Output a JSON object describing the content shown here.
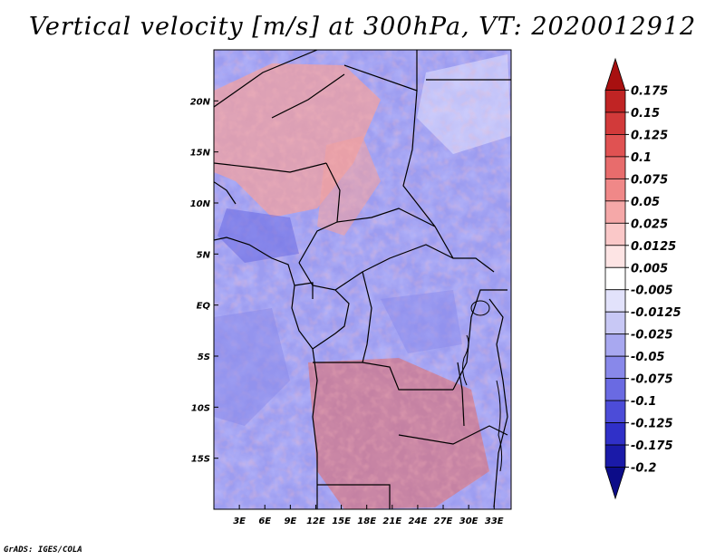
{
  "title": "Vertical velocity [m/s] at 300hPa, VT: 2020012912",
  "credit": "GrADS: IGES/COLA",
  "chart_data": {
    "type": "heatmap",
    "variable": "Vertical velocity",
    "units": "m/s",
    "level": "300hPa",
    "valid_time": "2020012912",
    "lon_range": [
      0,
      35
    ],
    "lat_range": [
      -20,
      25
    ],
    "x_ticks": [
      "3E",
      "6E",
      "9E",
      "12E",
      "15E",
      "18E",
      "21E",
      "24E",
      "27E",
      "30E",
      "33E"
    ],
    "x_tick_values": [
      3,
      6,
      9,
      12,
      15,
      18,
      21,
      24,
      27,
      30,
      33
    ],
    "y_ticks": [
      "20N",
      "15N",
      "10N",
      "5N",
      "EQ",
      "5S",
      "10S",
      "15S"
    ],
    "y_tick_values": [
      20,
      15,
      10,
      5,
      0,
      -5,
      -10,
      -15
    ],
    "colorbar": {
      "labels": [
        "0.175",
        "0.15",
        "0.125",
        "0.1",
        "0.075",
        "0.05",
        "0.025",
        "0.0125",
        "0.005",
        "-0.005",
        "-0.0125",
        "-0.025",
        "-0.05",
        "-0.075",
        "-0.1",
        "-0.125",
        "-0.175",
        "-0.2"
      ],
      "colors": [
        "#a81010",
        "#c02424",
        "#d23a3a",
        "#e05252",
        "#e86c6c",
        "#f08888",
        "#f5a8a8",
        "#fac8c8",
        "#fde4e4",
        "#ffffff",
        "#e2e2fb",
        "#c8c8f5",
        "#a8a8f0",
        "#8888ea",
        "#6a6ae2",
        "#4c4cd8",
        "#3030c8",
        "#1a1aa8",
        "#0c0c88"
      ]
    }
  }
}
